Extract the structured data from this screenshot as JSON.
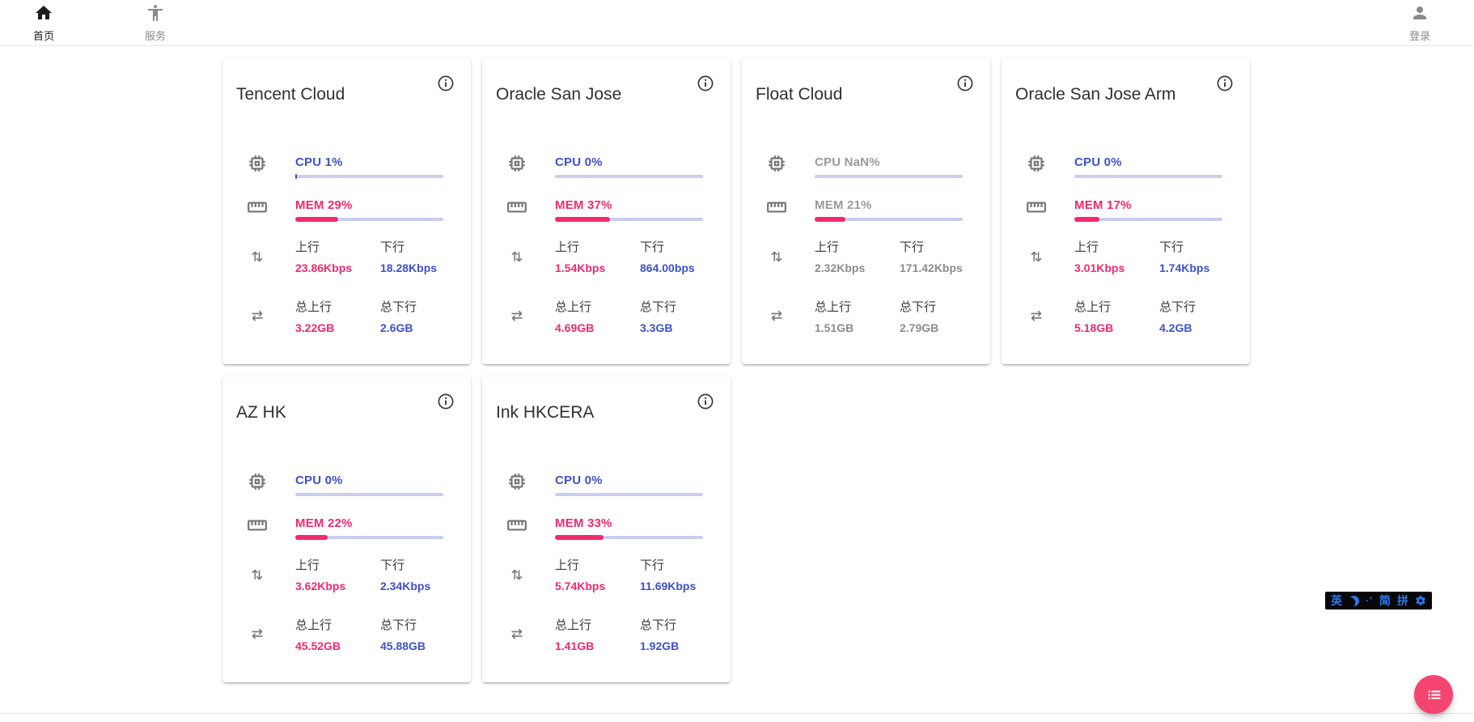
{
  "nav": {
    "home": "首页",
    "services": "服务",
    "login": "登录"
  },
  "labels": {
    "up": "上行",
    "down": "下行",
    "total_up": "总上行",
    "total_down": "总下行"
  },
  "colors": {
    "blue_accent": "#3d51cd",
    "pink_accent": "#f2296d",
    "progress_track": "#c9cdee",
    "offline_gray": "#8c8c8c",
    "fab_pink": "#f3456f",
    "ime_blue": "#2b79ef",
    "ime_background": "#070707"
  },
  "cards": [
    {
      "title": "Tencent Cloud",
      "online": true,
      "cpu_label": "CPU 1%",
      "cpu_pct": 1,
      "mem_label": "MEM 29%",
      "mem_pct": 29,
      "up": "23.86Kbps",
      "down": "18.28Kbps",
      "total_up": "3.22GB",
      "total_down": "2.6GB"
    },
    {
      "title": "Oracle San Jose",
      "online": true,
      "cpu_label": "CPU 0%",
      "cpu_pct": 0,
      "mem_label": "MEM 37%",
      "mem_pct": 37,
      "up": "1.54Kbps",
      "down": "864.00bps",
      "total_up": "4.69GB",
      "total_down": "3.3GB"
    },
    {
      "title": "Float Cloud",
      "online": false,
      "cpu_label": "CPU NaN%",
      "cpu_pct": 0,
      "mem_label": "MEM 21%",
      "mem_pct": 21,
      "up": "2.32Kbps",
      "down": "171.42Kbps",
      "total_up": "1.51GB",
      "total_down": "2.79GB"
    },
    {
      "title": "Oracle San Jose Arm",
      "online": true,
      "cpu_label": "CPU 0%",
      "cpu_pct": 0,
      "mem_label": "MEM 17%",
      "mem_pct": 17,
      "up": "3.01Kbps",
      "down": "1.74Kbps",
      "total_up": "5.18GB",
      "total_down": "4.2GB"
    },
    {
      "title": "AZ HK",
      "online": true,
      "cpu_label": "CPU 0%",
      "cpu_pct": 0,
      "mem_label": "MEM 22%",
      "mem_pct": 22,
      "up": "3.62Kbps",
      "down": "2.34Kbps",
      "total_up": "45.52GB",
      "total_down": "45.88GB"
    },
    {
      "title": "Ink HKCERA",
      "online": true,
      "cpu_label": "CPU 0%",
      "cpu_pct": 0,
      "mem_label": "MEM 33%",
      "mem_pct": 33,
      "up": "5.74Kbps",
      "down": "11.69Kbps",
      "total_up": "1.41GB",
      "total_down": "1.92GB"
    }
  ],
  "ime": {
    "english": "英",
    "punct": "·'",
    "simplified": "简",
    "pinyin": "拼"
  }
}
